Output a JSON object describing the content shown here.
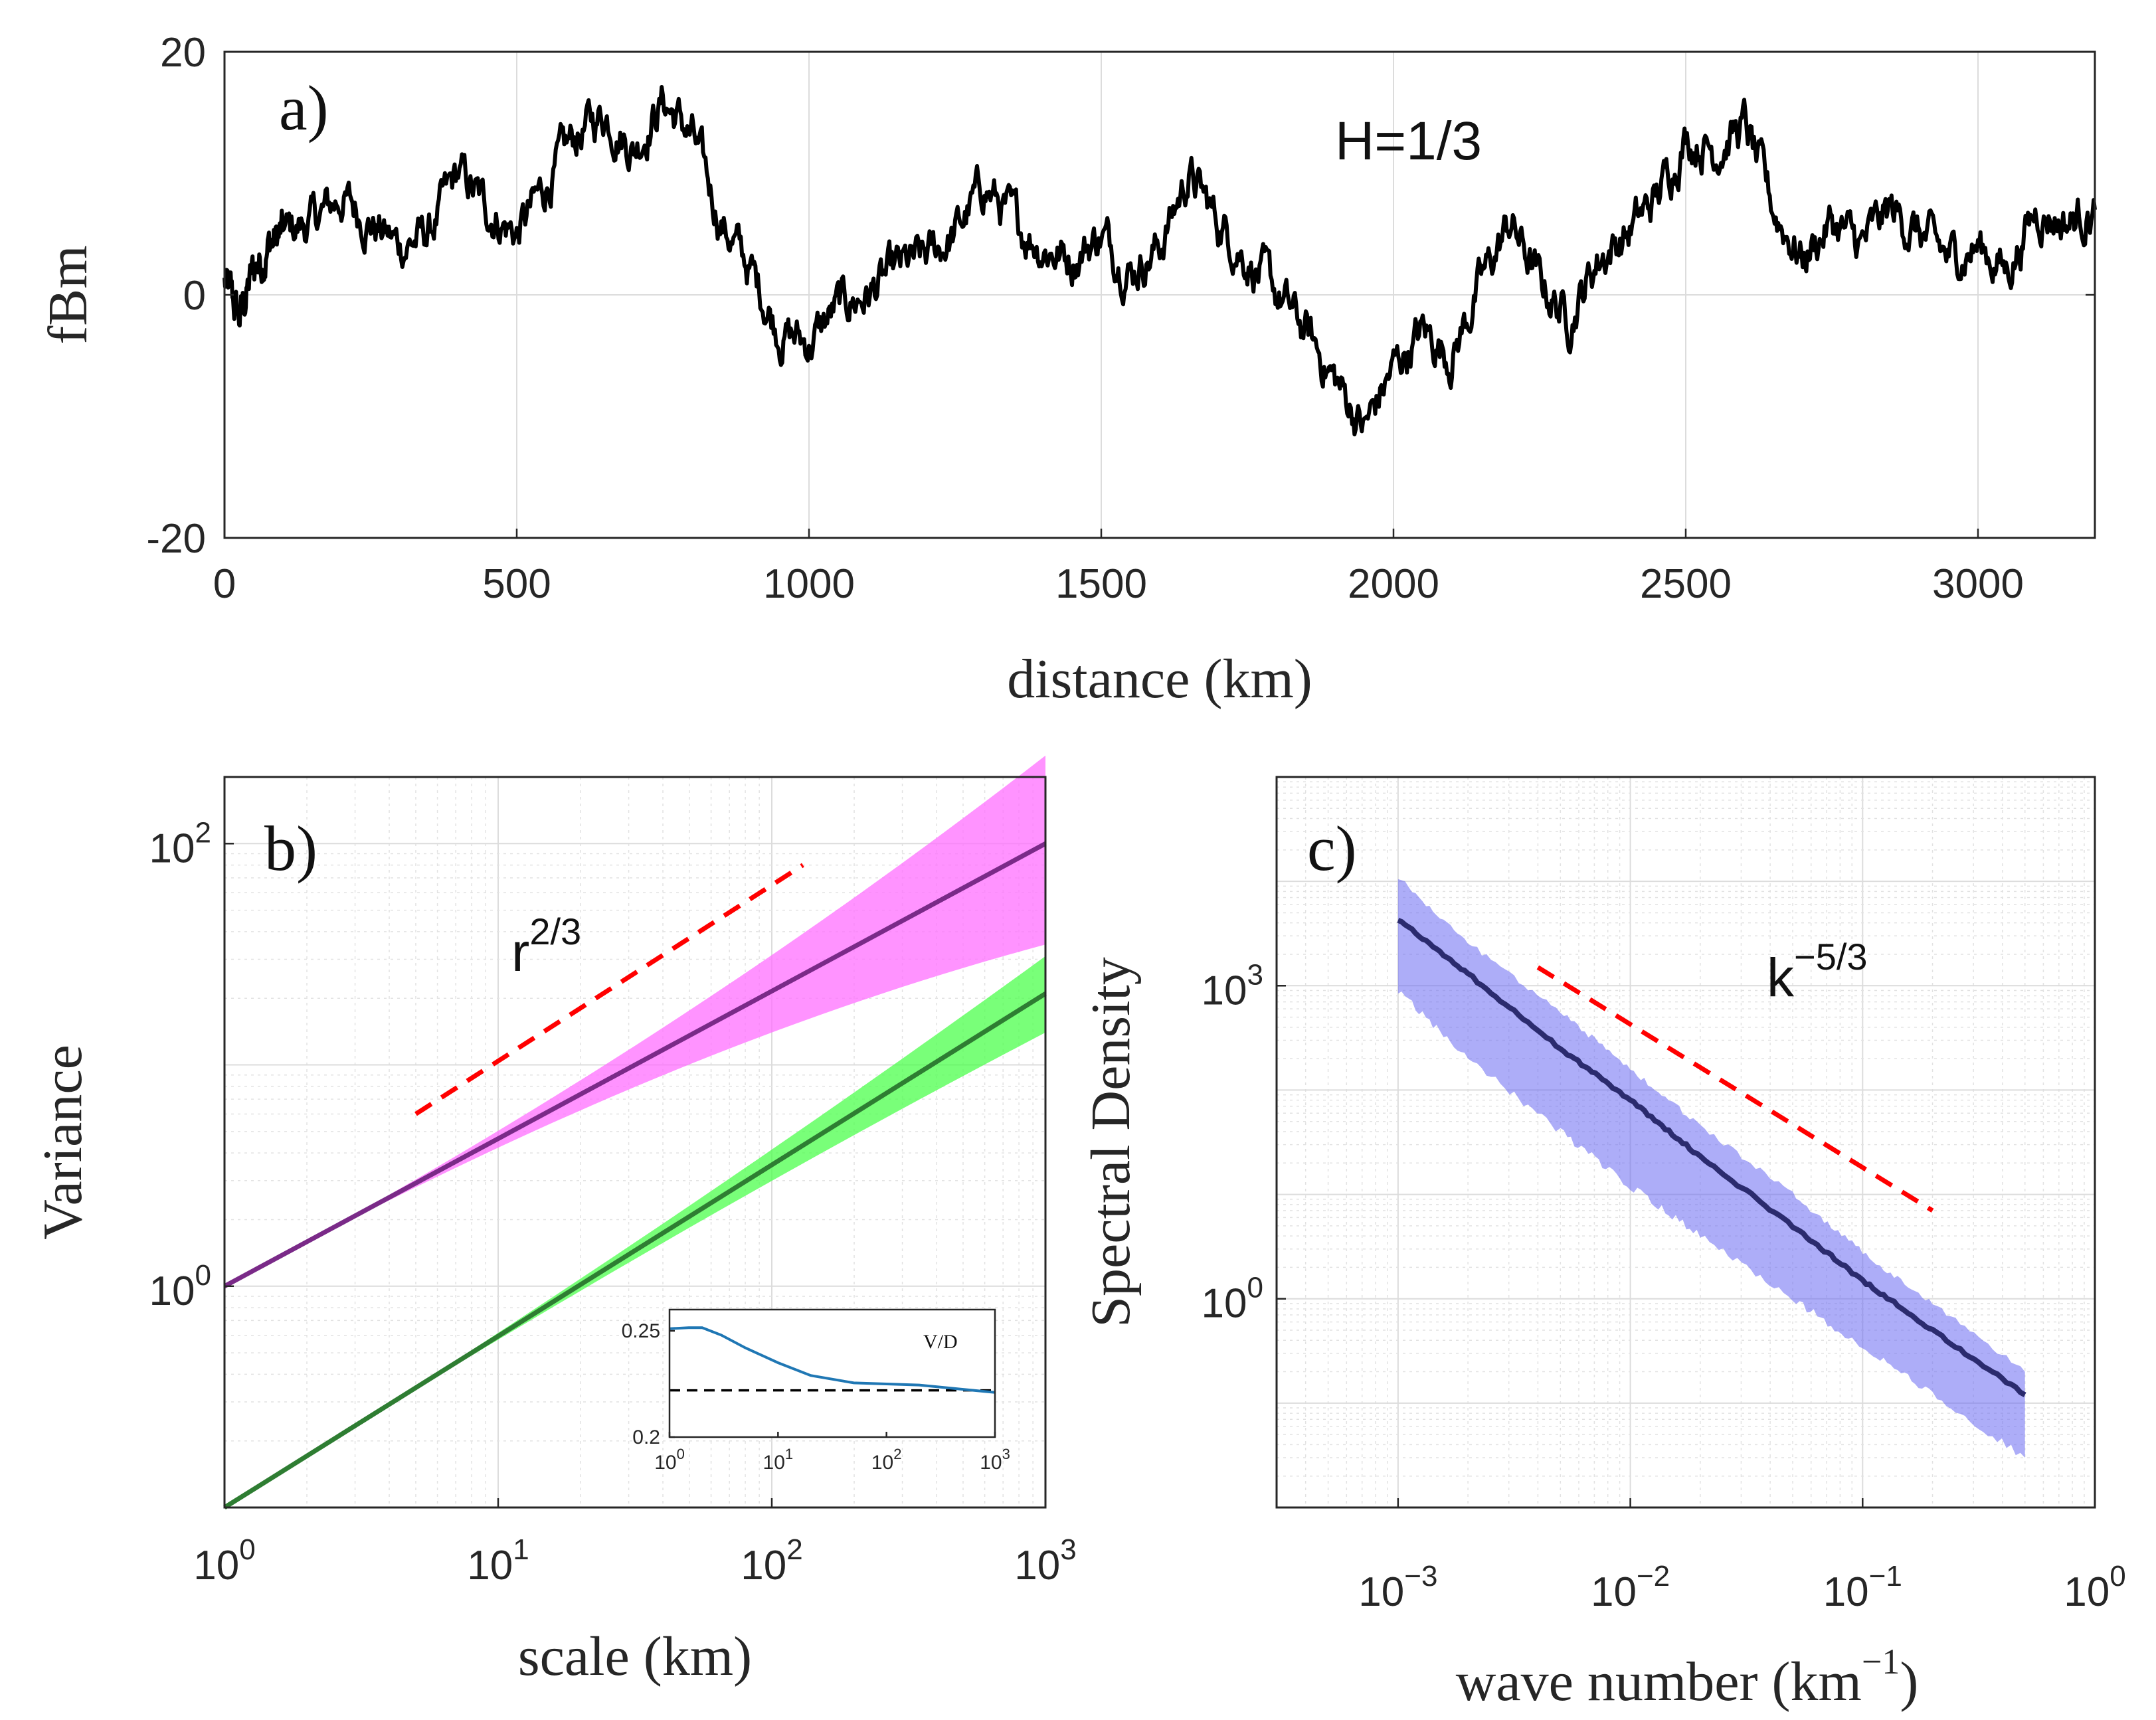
{
  "chart_data": [
    {
      "panel": "a)",
      "type": "line",
      "annotation": "H=1/3",
      "xlabel": "distance (km)",
      "ylabel": "fBm",
      "xlim": [
        0,
        3200
      ],
      "ylim": [
        -20,
        20
      ],
      "xticks": [
        "0",
        "500",
        "1000",
        "1500",
        "2000",
        "2500",
        "3000"
      ],
      "yticks": [
        "-20",
        "0",
        "20"
      ],
      "series": [
        {
          "name": "fBm",
          "color": "#000000",
          "x": [
            0,
            25,
            50,
            75,
            100,
            150,
            200,
            250,
            300,
            350,
            400,
            450,
            500,
            550,
            600,
            650,
            700,
            750,
            800,
            850,
            900,
            950,
            1000,
            1050,
            1100,
            1150,
            1200,
            1250,
            1300,
            1350,
            1400,
            1450,
            1500,
            1550,
            1600,
            1650,
            1700,
            1750,
            1800,
            1850,
            1900,
            1950,
            2000,
            2050,
            2100,
            2150,
            2200,
            2250,
            2300,
            2350,
            2400,
            2450,
            2500,
            2550,
            2600,
            2650,
            2700,
            2750,
            2800,
            2850,
            2900,
            2950,
            3000,
            3050,
            3100,
            3150,
            3200
          ],
          "values": [
            1,
            -2,
            2,
            4,
            5,
            6,
            8,
            6,
            4,
            5,
            10,
            7,
            5,
            9,
            13,
            15,
            12,
            16,
            13,
            6,
            2,
            -3,
            -4,
            -1,
            0,
            2,
            3,
            5,
            9,
            6,
            4,
            3,
            5,
            2,
            4,
            10,
            6,
            3,
            0,
            -3,
            -7,
            -11,
            -6,
            -3,
            -5,
            1,
            6,
            1,
            -2,
            3,
            5,
            8,
            13,
            12,
            14,
            7,
            3,
            6,
            4,
            7,
            5,
            3,
            4,
            2,
            7,
            6,
            7
          ]
        }
      ]
    },
    {
      "panel": "b)",
      "type": "line",
      "scale": "log-log",
      "xlabel": "scale (km)",
      "ylabel": "Variance",
      "xlim": [
        1,
        1000
      ],
      "ylim": [
        0.1,
        200
      ],
      "xticks": [
        "10",
        "10",
        "10",
        "10"
      ],
      "xtick_exponents": [
        "0",
        "1",
        "2",
        "3"
      ],
      "yticks": [
        "10",
        "10"
      ],
      "ytick_exponents": [
        "0",
        "2"
      ],
      "guide": {
        "label": "r",
        "exponent": "2/3",
        "x": [
          5,
          130
        ],
        "y": [
          6,
          80
        ],
        "color": "#ff0000"
      },
      "series": [
        {
          "name": "upper",
          "x": [
            1,
            1000
          ],
          "values": [
            1,
            100
          ],
          "band_low": [
            1,
            35
          ],
          "band_high": [
            1,
            250
          ],
          "color": "#7a2a88",
          "band_color": "#ff6fff"
        },
        {
          "name": "lower",
          "x": [
            1,
            1000
          ],
          "values": [
            0.1,
            21
          ],
          "band_low": [
            0.1,
            14
          ],
          "band_high": [
            0.1,
            31
          ],
          "color": "#2e7d32",
          "band_color": "#4cff4c"
        }
      ],
      "inset": {
        "label": "V/D",
        "xlim": [
          1,
          1000
        ],
        "ylim": [
          0.2,
          0.26
        ],
        "yticks": [
          "0.25",
          "0.2"
        ],
        "xticks": [
          "10",
          "10",
          "10",
          "10"
        ],
        "xtick_exponents": [
          "0",
          "1",
          "2",
          "3"
        ],
        "reference": 0.222,
        "series": {
          "name": "V/D",
          "color": "#1f77b4",
          "x": [
            1,
            1.5,
            2,
            3,
            5,
            10,
            20,
            50,
            100,
            200,
            500,
            1000
          ],
          "values": [
            0.251,
            0.2515,
            0.2515,
            0.248,
            0.242,
            0.235,
            0.229,
            0.2255,
            0.225,
            0.2245,
            0.2225,
            0.221
          ]
        }
      }
    },
    {
      "panel": "c)",
      "type": "line",
      "scale": "log-log",
      "xlabel": "wave number (km",
      "xlabel_exponent": "−1",
      "xlabel_close": ")",
      "ylabel": "Spectral Density",
      "xlim": [
        0.0003,
        1
      ],
      "ylim": [
        0.01,
        100000
      ],
      "xticks": [
        "10",
        "10",
        "10",
        "10"
      ],
      "xtick_exponents": [
        "−3",
        "−2",
        "−1",
        "0"
      ],
      "yticks": [
        "10",
        "10"
      ],
      "ytick_exponents": [
        "0",
        "3"
      ],
      "guide": {
        "label": "k",
        "exponent": "−5/3",
        "x": [
          0.004,
          0.2
        ],
        "y": [
          1500,
          7
        ],
        "color": "#ff0000"
      },
      "series": [
        {
          "name": "spectrum",
          "color": "#2b2b6e",
          "band_color": "#6a6af2",
          "x": [
            0.001,
            0.002,
            0.005,
            0.01,
            0.02,
            0.05,
            0.1,
            0.2,
            0.5
          ],
          "values": [
            4300,
            1300,
            250,
            80,
            23,
            5,
            1.5,
            0.5,
            0.12
          ],
          "band_low": [
            900,
            200,
            40,
            12,
            4,
            1,
            0.35,
            0.12,
            0.03
          ],
          "band_high": [
            11000,
            2600,
            560,
            160,
            45,
            10,
            2.8,
            0.9,
            0.2
          ]
        }
      ]
    }
  ]
}
